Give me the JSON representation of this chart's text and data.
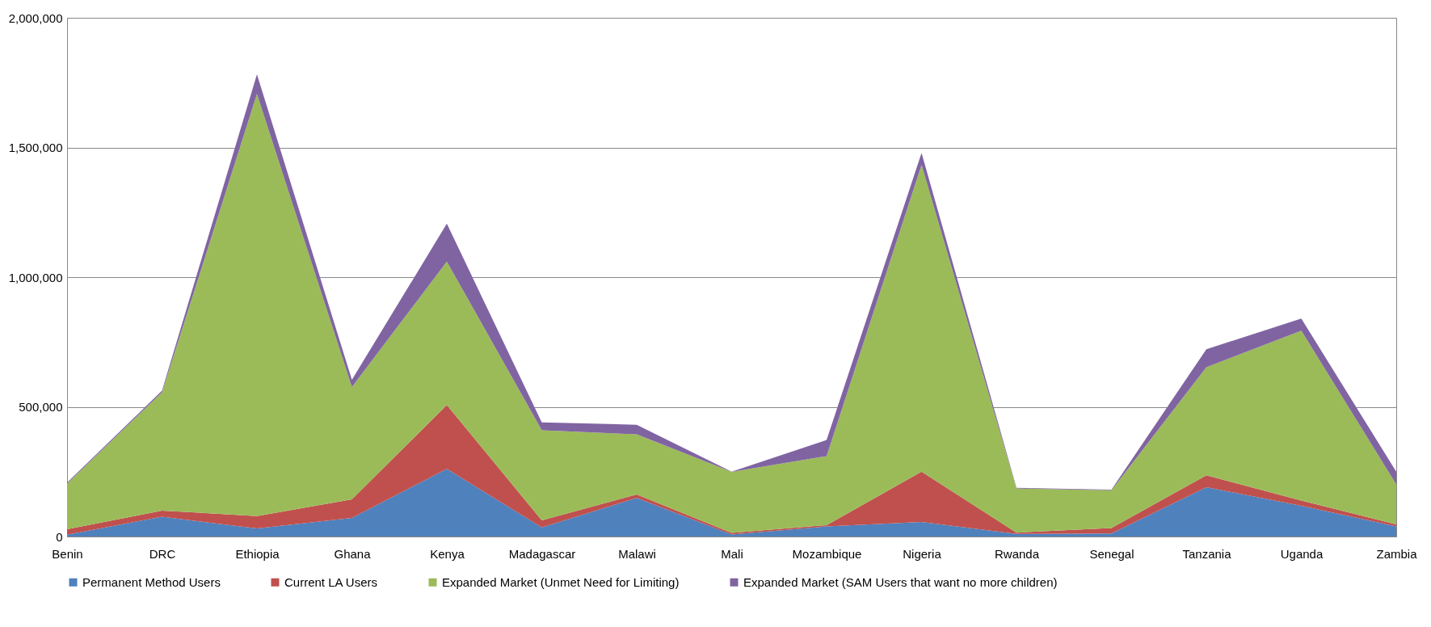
{
  "chart_data": {
    "type": "area",
    "stacked": true,
    "categories": [
      "Benin",
      "DRC",
      "Ethiopia",
      "Ghana",
      "Kenya",
      "Madagascar",
      "Malawi",
      "Mali",
      "Mozambique",
      "Nigeria",
      "Rwanda",
      "Senegal",
      "Tanzania",
      "Uganda",
      "Zambia"
    ],
    "series": [
      {
        "name": "Permanent Method Users",
        "color": "#4f81bd",
        "values": [
          7000,
          76000,
          31000,
          72000,
          261000,
          35000,
          149000,
          8000,
          39000,
          56000,
          10000,
          12000,
          190000,
          118000,
          39000
        ]
      },
      {
        "name": "Current LA Users",
        "color": "#c0504d",
        "values": [
          21000,
          24000,
          48000,
          71000,
          246000,
          27000,
          13000,
          6000,
          5000,
          194000,
          5000,
          21000,
          46000,
          21000,
          8000
        ]
      },
      {
        "name": "Expanded Market (Unmet Need for Limiting)",
        "color": "#9bbb59",
        "values": [
          176000,
          456000,
          1627000,
          433000,
          553000,
          348000,
          232000,
          235000,
          266000,
          1183000,
          170000,
          145000,
          417000,
          655000,
          154000
        ]
      },
      {
        "name": "Expanded Market (SAM Users that want no more children)",
        "color": "#8064a2",
        "values": [
          4000,
          6000,
          76000,
          28000,
          146000,
          30000,
          37000,
          1000,
          62000,
          46000,
          3000,
          3000,
          69000,
          46000,
          49000
        ]
      }
    ],
    "ylim": [
      0,
      2000000
    ],
    "yticks": [
      0,
      {
        "value": 500000,
        "label": "500,000"
      },
      {
        "value": 1000000,
        "label": "1,000,000"
      },
      {
        "value": 1500000,
        "label": "1,500,000"
      },
      {
        "value": 2000000,
        "label": "2,000,000"
      }
    ],
    "grid": "y",
    "legend": "bottom"
  }
}
